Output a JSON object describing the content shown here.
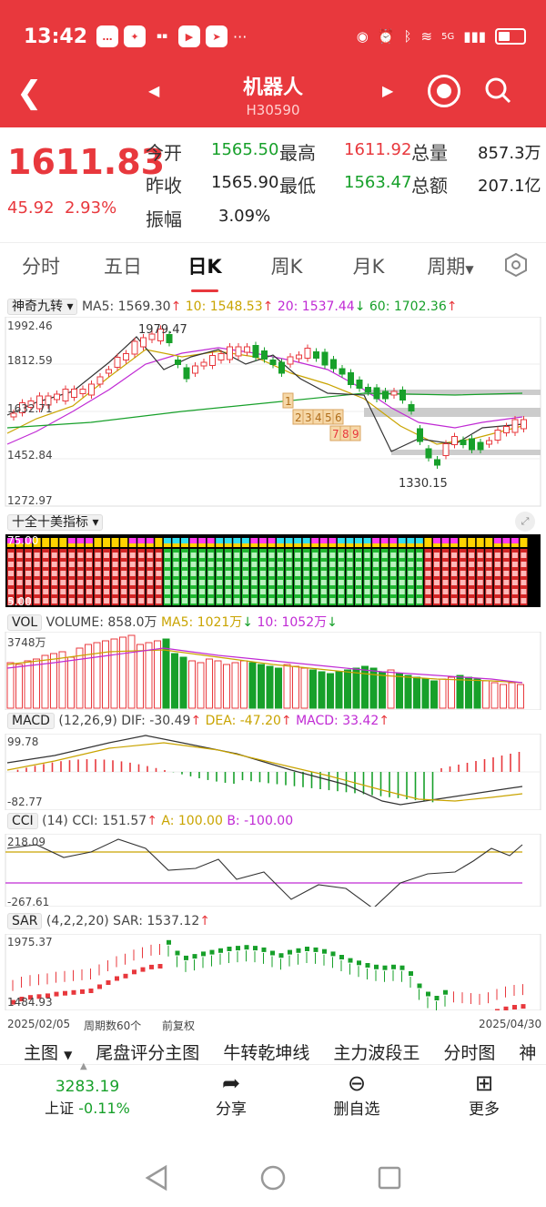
{
  "status_bar": {
    "time": "13:42",
    "network": "5G"
  },
  "header": {
    "title": "机器人",
    "code": "H30590"
  },
  "quote": {
    "price": "1611.83",
    "change": "45.92",
    "change_pct": "2.93%",
    "labels": {
      "open": "今开",
      "prev_close": "昨收",
      "amplitude": "振幅",
      "high": "最高",
      "low": "最低",
      "volume": "总量",
      "amount": "总额"
    },
    "open": "1565.50",
    "prev_close": "1565.90",
    "amplitude": "3.09%",
    "high": "1611.92",
    "low": "1563.47",
    "volume": "857.3万",
    "amount": "207.1亿"
  },
  "tabs": [
    "分时",
    "五日",
    "日K",
    "周K",
    "月K",
    "周期"
  ],
  "main_chart": {
    "indicator_name": "神奇九转",
    "ma5": "MA5: 1569.30",
    "ma10": "10: 1548.53",
    "ma20": "20: 1537.44",
    "ma60": "60: 1702.36",
    "y_ticks": [
      "1992.46",
      "1812.59",
      "1632.71",
      "1452.84",
      "1272.97"
    ],
    "max_label": "1979.47",
    "min_label": "1330.15",
    "countdown": [
      "1",
      "2",
      "3",
      "4",
      "5",
      "6",
      "7",
      "8",
      "9"
    ]
  },
  "sub_indicator": {
    "name": "十全十美指标",
    "y_top": "75.00",
    "y_bottom": "5.00"
  },
  "vol": {
    "name": "VOL",
    "volume": "VOLUME: 858.0万",
    "ma5": "MA5: 1021万",
    "ma10": "10: 1052万",
    "y_top": "3748万"
  },
  "macd": {
    "name": "MACD",
    "params": "(12,26,9)",
    "dif": "DIF: -30.49",
    "dea": "DEA: -47.20",
    "macd": "MACD: 33.42",
    "y_top": "99.78",
    "y_bottom": "-82.77"
  },
  "cci": {
    "name": "CCI",
    "params": "(14)",
    "cci": "CCI: 151.57",
    "a": "A: 100.00",
    "b": "B: -100.00",
    "y_top": "218.09",
    "y_bottom": "-267.61"
  },
  "sar": {
    "name": "SAR",
    "params": "(4,2,2,20)",
    "sar": "SAR: 1537.12",
    "y_top": "1975.37",
    "y_bottom": "1484.93"
  },
  "footer_axis": {
    "start": "2025/02/05",
    "period": "周期数60个",
    "adjust": "前复权",
    "end": "2025/04/30"
  },
  "bottom_tabs": [
    "主图",
    "尾盘评分主图",
    "牛转乾坤线",
    "主力波段王",
    "分时图",
    "神"
  ],
  "toolbar": {
    "index_value": "3283.19",
    "index_name": "上证",
    "index_change": "-0.11%",
    "share": "分享",
    "remove": "删自选",
    "more": "更多"
  },
  "colors": {
    "up": "#e8383d",
    "down": "#17a02a",
    "brand": "#e8383d"
  }
}
